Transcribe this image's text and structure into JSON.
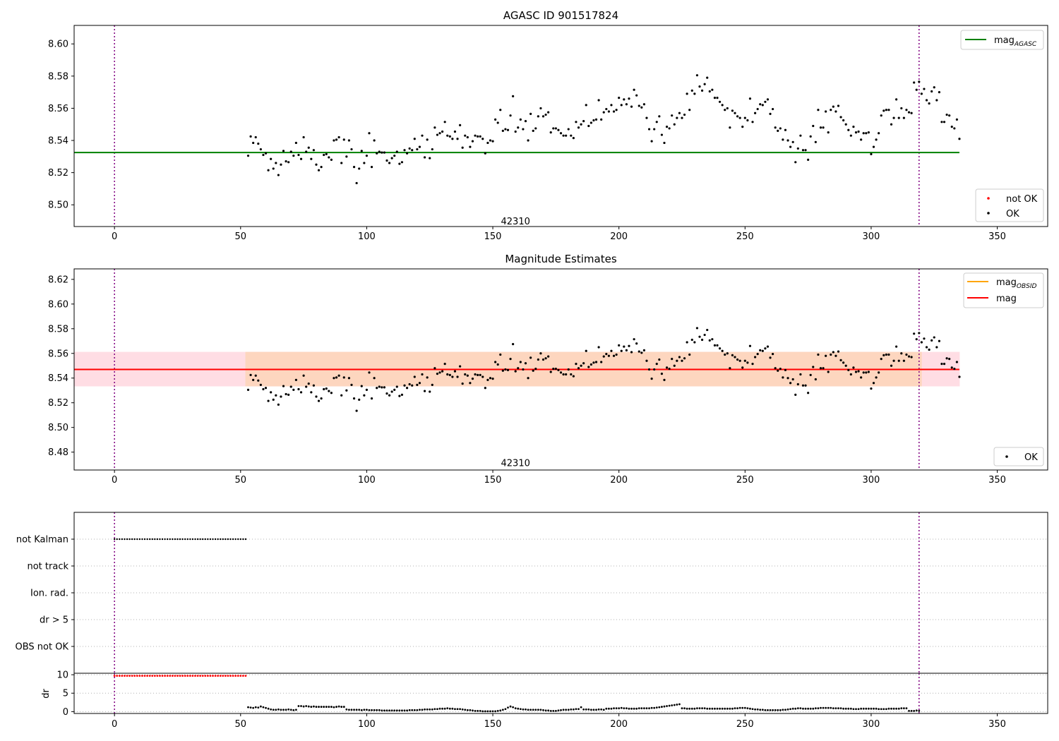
{
  "chart_data": [
    {
      "type": "scatter",
      "title": "AGASC ID 901517824",
      "xlim": [
        -16,
        370
      ],
      "ylim": [
        8.4865,
        8.6115
      ],
      "x_ticks": [
        0,
        50,
        100,
        150,
        200,
        250,
        300,
        350
      ],
      "y_ticks": [
        8.5,
        8.52,
        8.54,
        8.56,
        8.58,
        8.6
      ],
      "y_tick_decimals": 2,
      "vlines": [
        0,
        319
      ],
      "hlines": [
        {
          "name": "mag_agasc",
          "y": 8.5325,
          "x_range": [
            -16,
            335
          ],
          "color": "#008000"
        }
      ],
      "obsid_label": {
        "text": "42310",
        "x": 159,
        "y": 8.4895
      },
      "legend_upper": [
        {
          "label": "mag",
          "sub": "AGASC",
          "color": "#008000",
          "marker": "line"
        }
      ],
      "legend_lower": [
        {
          "label": "not OK",
          "color": "#ff0000",
          "marker": "dot"
        },
        {
          "label": "OK",
          "color": "#000000",
          "marker": "dot"
        }
      ],
      "series": [
        {
          "name": "OK",
          "color": "#000000",
          "source": "mag_samples"
        }
      ]
    },
    {
      "type": "scatter",
      "title": "Magnitude Estimates",
      "xlim": [
        -16,
        370
      ],
      "ylim": [
        8.4655,
        8.6285
      ],
      "x_ticks": [
        0,
        50,
        100,
        150,
        200,
        250,
        300,
        350
      ],
      "y_ticks": [
        8.48,
        8.5,
        8.52,
        8.54,
        8.56,
        8.58,
        8.6,
        8.62
      ],
      "y_tick_decimals": 2,
      "vlines": [
        0,
        319
      ],
      "bands": [
        {
          "name": "mag-range",
          "y0": 8.5335,
          "y1": 8.561,
          "x_range": [
            -16,
            335
          ],
          "color": "#ffdde4"
        },
        {
          "name": "mag-obsid-range",
          "y0": 8.5335,
          "y1": 8.561,
          "x_range": [
            52,
            320
          ],
          "color": "#fdd6bf"
        }
      ],
      "hlines": [
        {
          "name": "mag",
          "y": 8.547,
          "x_range": [
            -16,
            335
          ],
          "color": "#ff0000"
        }
      ],
      "obsid_label": {
        "text": "42310",
        "x": 159,
        "y": 8.471
      },
      "legend_upper": [
        {
          "label": "mag",
          "sub": "OBSID",
          "color": "#ffa500",
          "marker": "line"
        },
        {
          "label": "mag",
          "sub": "",
          "color": "#ff0000",
          "marker": "line"
        }
      ],
      "legend_lower": [
        {
          "label": "OK",
          "color": "#000000",
          "marker": "dot"
        }
      ],
      "series": [
        {
          "name": "OK",
          "color": "#000000",
          "source": "mag_samples"
        }
      ]
    },
    {
      "type": "scatter",
      "title": "",
      "xlim": [
        -16,
        370
      ],
      "categories": [
        "not Kalman",
        "not track",
        "Ion. rad.",
        "dr > 5",
        "OBS not OK"
      ],
      "vlines": [
        0,
        319
      ],
      "series": [
        {
          "name": "not Kalman",
          "x_range": [
            0,
            52
          ],
          "step": 1,
          "color": "#000000"
        }
      ]
    },
    {
      "type": "scatter",
      "title": "",
      "ylabel": "dr",
      "xlim": [
        -16,
        370
      ],
      "ylim": [
        -0.5,
        10.4
      ],
      "x_ticks": [
        0,
        50,
        100,
        150,
        200,
        250,
        300,
        350
      ],
      "y_ticks": [
        0,
        5,
        10
      ],
      "vlines": [
        0,
        319
      ],
      "series": [
        {
          "name": "dr not OK",
          "color": "#ff0000",
          "x_range": [
            0,
            52
          ],
          "step": 1,
          "y": 9.7
        },
        {
          "name": "dr OK",
          "color": "#000000",
          "source": "dr_samples"
        }
      ]
    }
  ],
  "mag_samples": {
    "x_start": 53,
    "x_step": 1,
    "y": [
      8.5305,
      8.5425,
      8.5385,
      8.542,
      8.538,
      8.5345,
      8.531,
      8.532,
      8.5215,
      8.5285,
      8.5225,
      8.526,
      8.5185,
      8.525,
      8.5335,
      8.527,
      8.5265,
      8.533,
      8.5305,
      8.5385,
      8.531,
      8.5285,
      8.542,
      8.533,
      8.5355,
      8.5285,
      8.534,
      8.525,
      8.5215,
      8.5235,
      8.531,
      8.5315,
      8.5295,
      8.528,
      8.54,
      8.5405,
      8.542,
      8.526,
      8.5405,
      8.53,
      8.54,
      8.5345,
      8.5235,
      8.5135,
      8.5225,
      8.5335,
      8.526,
      8.5305,
      8.5445,
      8.5235,
      8.54,
      8.532,
      8.533,
      8.5325,
      8.5325,
      8.5275,
      8.526,
      8.529,
      8.5305,
      8.533,
      8.5255,
      8.5265,
      8.534,
      8.532,
      8.535,
      8.534,
      8.541,
      8.5345,
      8.536,
      8.543,
      8.5295,
      8.5405,
      8.529,
      8.5345,
      8.548,
      8.5435,
      8.5445,
      8.5455,
      8.5515,
      8.543,
      8.5425,
      8.541,
      8.5455,
      8.541,
      8.5495,
      8.5355,
      8.543,
      8.542,
      8.536,
      8.5395,
      8.543,
      8.5425,
      8.5425,
      8.541,
      8.532,
      8.5385,
      8.54,
      8.5395,
      8.553,
      8.551,
      8.559,
      8.546,
      8.547,
      8.5465,
      8.5555,
      8.5675,
      8.5455,
      8.548,
      8.553,
      8.547,
      8.552,
      8.54,
      8.5565,
      8.546,
      8.5475,
      8.555,
      8.56,
      8.555,
      8.556,
      8.5575,
      8.545,
      8.5475,
      8.5475,
      8.5465,
      8.5445,
      8.543,
      8.543,
      8.547,
      8.543,
      8.5415,
      8.5515,
      8.548,
      8.55,
      8.552,
      8.562,
      8.549,
      8.551,
      8.5525,
      8.553,
      8.565,
      8.553,
      8.5575,
      8.5595,
      8.558,
      8.562,
      8.558,
      8.559,
      8.5665,
      8.562,
      8.5655,
      8.5625,
      8.566,
      8.561,
      8.5715,
      8.568,
      8.5615,
      8.5605,
      8.5625,
      8.554,
      8.547,
      8.5395,
      8.547,
      8.5515,
      8.555,
      8.5435,
      8.5385,
      8.5485,
      8.5475,
      8.5555,
      8.55,
      8.554,
      8.557,
      8.554,
      8.556,
      8.569,
      8.559,
      8.571,
      8.569,
      8.5805,
      8.5735,
      8.571,
      8.575,
      8.579,
      8.5705,
      8.5715,
      8.5665,
      8.5665,
      8.564,
      8.562,
      8.559,
      8.56,
      8.548,
      8.5585,
      8.557,
      8.555,
      8.554,
      8.5485,
      8.554,
      8.5525,
      8.566,
      8.5515,
      8.557,
      8.5595,
      8.5625,
      8.562,
      8.564,
      8.5655,
      8.5565,
      8.5595,
      8.548,
      8.546,
      8.5475,
      8.5405,
      8.5465,
      8.54,
      8.536,
      8.539,
      8.5265,
      8.535,
      8.543,
      8.534,
      8.534,
      8.528,
      8.5425,
      8.549,
      8.539,
      8.559,
      8.548,
      8.548,
      8.558,
      8.545,
      8.559,
      8.561,
      8.558,
      8.5615,
      8.5545,
      8.5525,
      8.55,
      8.5465,
      8.543,
      8.5485,
      8.545,
      8.5455,
      8.5405,
      8.5445,
      8.5445,
      8.545,
      8.5315,
      8.536,
      8.5405,
      8.5445,
      8.5555,
      8.5585,
      8.559,
      8.559,
      8.55,
      8.554,
      8.5655,
      8.554,
      8.56,
      8.554,
      8.559,
      8.5575,
      8.557,
      8.576,
      8.5715,
      8.5765,
      8.569,
      8.572,
      8.565,
      8.563,
      8.5705,
      8.573,
      8.565,
      8.57,
      8.5515,
      8.5515,
      8.556,
      8.5555,
      8.5485,
      8.5475,
      8.553,
      8.541
    ]
  },
  "dr_samples": {
    "x_start": 53,
    "x_step": 1,
    "y": [
      1.2,
      1.1,
      1.0,
      1.2,
      1.1,
      1.4,
      1.2,
      1.0,
      0.8,
      0.6,
      0.5,
      0.5,
      0.6,
      0.5,
      0.5,
      0.5,
      0.6,
      0.5,
      0.4,
      0.5,
      1.5,
      1.5,
      1.4,
      1.5,
      1.4,
      1.3,
      1.4,
      1.3,
      1.3,
      1.3,
      1.3,
      1.3,
      1.3,
      1.3,
      1.2,
      1.3,
      1.4,
      1.3,
      1.3,
      0.6,
      0.5,
      0.5,
      0.5,
      0.5,
      0.5,
      0.4,
      0.5,
      0.5,
      0.4,
      0.4,
      0.4,
      0.4,
      0.4,
      0.3,
      0.3,
      0.3,
      0.3,
      0.3,
      0.3,
      0.3,
      0.3,
      0.3,
      0.3,
      0.3,
      0.4,
      0.4,
      0.4,
      0.4,
      0.5,
      0.5,
      0.6,
      0.6,
      0.6,
      0.6,
      0.7,
      0.7,
      0.8,
      0.8,
      0.8,
      0.9,
      0.8,
      0.8,
      0.7,
      0.7,
      0.7,
      0.6,
      0.5,
      0.4,
      0.4,
      0.3,
      0.2,
      0.2,
      0.2,
      0.1,
      0.1,
      0.1,
      0.1,
      0.1,
      0.1,
      0.2,
      0.3,
      0.5,
      0.7,
      1.1,
      1.4,
      1.2,
      0.9,
      0.8,
      0.7,
      0.6,
      0.6,
      0.5,
      0.5,
      0.5,
      0.5,
      0.5,
      0.5,
      0.4,
      0.3,
      0.3,
      0.2,
      0.2,
      0.2,
      0.3,
      0.4,
      0.5,
      0.5,
      0.5,
      0.6,
      0.6,
      0.7,
      0.7,
      1.2,
      0.6,
      0.6,
      0.6,
      0.5,
      0.5,
      0.5,
      0.6,
      0.6,
      0.5,
      0.8,
      0.8,
      0.8,
      0.9,
      0.9,
      0.9,
      1.0,
      0.9,
      0.9,
      0.8,
      0.8,
      0.8,
      0.8,
      0.9,
      0.9,
      0.9,
      0.9,
      0.9,
      1.0,
      1.0,
      1.1,
      1.2,
      1.3,
      1.4,
      1.5,
      1.6,
      1.7,
      1.8,
      1.9,
      2.0,
      0.9,
      0.9,
      0.8,
      0.8,
      0.8,
      0.8,
      0.9,
      0.9,
      0.9,
      0.9,
      0.8,
      0.8,
      0.8,
      0.8,
      0.8,
      0.8,
      0.8,
      0.8,
      0.8,
      0.8,
      0.8,
      0.9,
      0.9,
      1.0,
      1.0,
      1.0,
      0.9,
      0.8,
      0.7,
      0.6,
      0.6,
      0.5,
      0.5,
      0.4,
      0.4,
      0.4,
      0.4,
      0.4,
      0.4,
      0.4,
      0.5,
      0.5,
      0.6,
      0.7,
      0.8,
      0.8,
      0.9,
      0.9,
      0.8,
      0.8,
      0.8,
      0.8,
      0.8,
      0.9,
      0.9,
      1.0,
      1.0,
      1.0,
      1.0,
      1.0,
      0.9,
      0.9,
      0.9,
      0.9,
      0.8,
      0.8,
      0.8,
      0.8,
      0.7,
      0.7,
      0.7,
      0.8,
      0.8,
      0.8,
      0.8,
      0.8,
      0.8,
      0.8,
      0.7,
      0.7,
      0.7,
      0.7,
      0.8,
      0.8,
      0.8,
      0.8,
      0.8,
      0.9,
      0.9,
      0.9,
      0.2,
      0.2,
      0.2,
      0.3,
      0.2
    ]
  }
}
